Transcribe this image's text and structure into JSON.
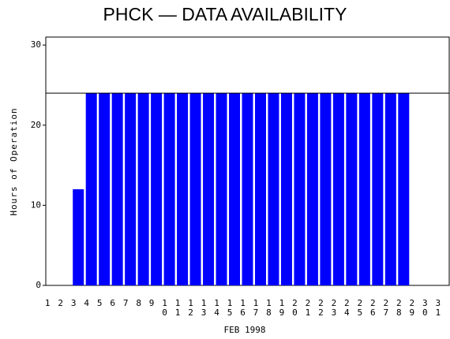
{
  "chart_data": {
    "type": "bar",
    "title": "PHCK — DATA AVAILABILITY",
    "x_label": "FEB 1998",
    "y_label": "Hours of Operation",
    "categories": [
      "1",
      "2",
      "3",
      "4",
      "5",
      "6",
      "7",
      "8",
      "9",
      "10",
      "11",
      "12",
      "13",
      "14",
      "15",
      "16",
      "17",
      "18",
      "19",
      "20",
      "21",
      "22",
      "23",
      "24",
      "25",
      "26",
      "27",
      "28",
      "29",
      "30",
      "31"
    ],
    "values": [
      0,
      0,
      12,
      24,
      24,
      24,
      24,
      24,
      24,
      24,
      24,
      24,
      24,
      24,
      24,
      24,
      24,
      24,
      24,
      24,
      24,
      24,
      24,
      24,
      24,
      24,
      24,
      24,
      0,
      0,
      0
    ],
    "color": "#0000ff",
    "ylim": [
      0,
      31
    ],
    "yticks": [
      0,
      10,
      20,
      30
    ],
    "reference_line": 24
  }
}
